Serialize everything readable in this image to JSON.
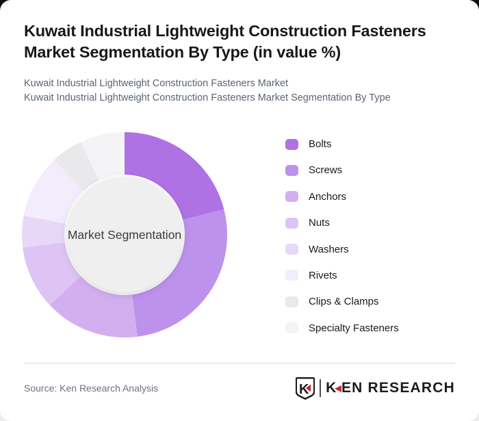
{
  "header": {
    "title": "Kuwait Industrial Lightweight Construction Fasteners Market Segmentation By Type (in value %)",
    "title_lines": [
      "Kuwait Industrial Lightweight Construction Fasteners",
      "Market Segmentation By Type (in value %)"
    ],
    "subtitle_lines": [
      "Kuwait Industrial Lightweight Construction Fasteners Market",
      "Kuwait Industrial Lightweight Construction Fasteners Market Segmentation By Type"
    ]
  },
  "chart_data": {
    "type": "pie",
    "variant": "donut",
    "center_label": "Market Segmentation",
    "unit": "%",
    "categories": [
      "Bolts",
      "Screws",
      "Anchors",
      "Nuts",
      "Washers",
      "Rivets",
      "Clips & Clamps",
      "Specialty Fasteners"
    ],
    "values": [
      21,
      27,
      15,
      10,
      5,
      10,
      5,
      7
    ],
    "colors": [
      "#ae72e4",
      "#bd92ec",
      "#d3aff0",
      "#ddc4f5",
      "#e8d8f8",
      "#f3ecfc",
      "#e9e8ea",
      "#f4f3f5"
    ],
    "start_angle_deg": 0,
    "direction": "clockwise",
    "legend_position": "right",
    "inner_circle_color": "#f0eff0",
    "center_label_color": "#3b3b3d"
  },
  "footer": {
    "source": "Source: Ken Research Analysis",
    "brand": {
      "badge_letter": "K",
      "wordmark_k": "K",
      "wordmark_rest": "EN RESEARCH",
      "accent_color": "#c9252b"
    }
  }
}
